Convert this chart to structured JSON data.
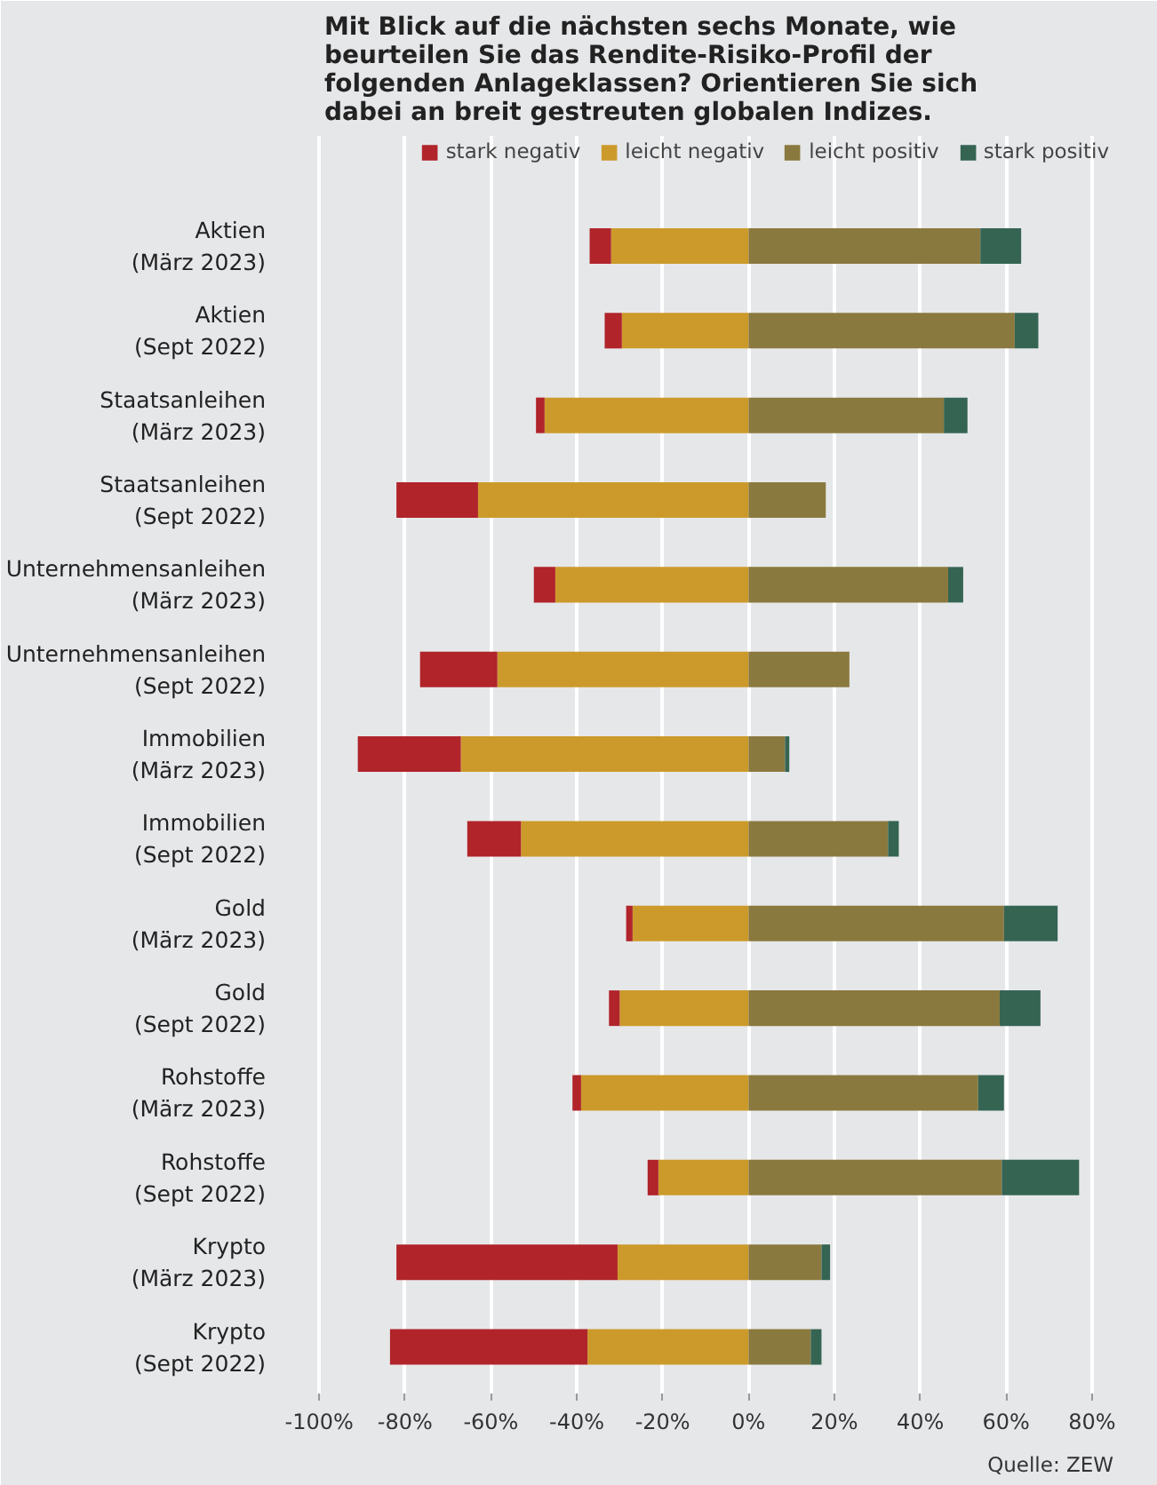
{
  "chart_data": {
    "type": "bar",
    "orientation": "horizontal",
    "stacked": true,
    "title": "Mit Blick auf die nächsten sechs Monate, wie beurteilen Sie das Rendite-Risiko-Profil der folgenden Anlageklassen? Orientieren Sie sich dabei an breit gestreuten globalen Indizes.",
    "categories": [
      "Aktien\n(März 2023)",
      "Aktien\n(Sept 2022)",
      "Staatsanleihen\n(März 2023)",
      "Staatsanleihen\n(Sept 2022)",
      "Unternehmensanleihen\n(März 2023)",
      "Unternehmensanleihen\n(Sept 2022)",
      "Immobilien\n(März 2023)",
      "Immobilien\n(Sept 2022)",
      "Gold\n(März 2023)",
      "Gold\n(Sept 2022)",
      "Rohstoffe\n(März 2023)",
      "Rohstoffe\n(Sept 2022)",
      "Krypto\n(März 2023)",
      "Krypto\n(Sept 2022)"
    ],
    "series": [
      {
        "name": "leicht negativ",
        "color": "#cc9a2a",
        "values": [
          -32,
          -29.5,
          -47.5,
          -63,
          -45,
          -58.5,
          -67,
          -53,
          -27,
          -30,
          -39,
          -21,
          -30.5,
          -37.5
        ]
      },
      {
        "name": "stark negativ",
        "color": "#b0242a",
        "values": [
          -5,
          -4,
          -2,
          -19,
          -5,
          -18,
          -24,
          -12.5,
          -1.5,
          -2.5,
          -2,
          -2.5,
          -51.5,
          -46
        ]
      },
      {
        "name": "leicht positiv",
        "color": "#8a793e",
        "values": [
          54,
          62,
          45.5,
          18,
          46.5,
          23.5,
          8.5,
          32.5,
          59.5,
          58.5,
          53.5,
          59,
          17,
          14.5
        ]
      },
      {
        "name": "stark positiv",
        "color": "#356453",
        "values": [
          9.5,
          5.5,
          5.5,
          0,
          3.5,
          0,
          1,
          2.5,
          12.5,
          9.5,
          6,
          18,
          2,
          2.5
        ]
      }
    ],
    "xlim": [
      -105,
      85
    ],
    "xticks": [
      {
        "value": -100,
        "label": "-100%"
      },
      {
        "value": -80,
        "label": "-80%"
      },
      {
        "value": -60,
        "label": "-60%"
      },
      {
        "value": -40,
        "label": "-40%"
      },
      {
        "value": -20,
        "label": "-20%"
      },
      {
        "value": 0,
        "label": "0%"
      },
      {
        "value": 20,
        "label": "20%"
      },
      {
        "value": 40,
        "label": "40%"
      },
      {
        "value": 60,
        "label": "60%"
      },
      {
        "value": 80,
        "label": "80%"
      }
    ],
    "grid": "x",
    "legend": "top",
    "annotations": [
      "Quelle: ZEW"
    ]
  }
}
